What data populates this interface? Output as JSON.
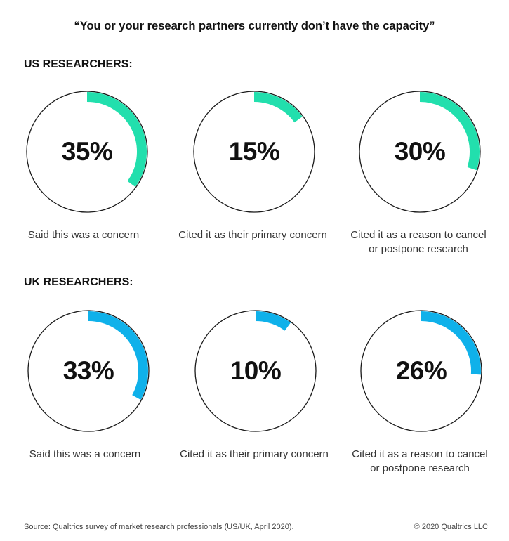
{
  "title": "“You or your research partners currently don’t have the capacity”",
  "sections": [
    {
      "heading": "US RESEARCHERS:"
    },
    {
      "heading": "UK RESEARCHERS:"
    }
  ],
  "colors": {
    "us": "#22dfad",
    "uk": "#0fb1ea",
    "ring": "#1a1a1a"
  },
  "chart_data": [
    {
      "type": "pie",
      "group": "US RESEARCHERS:",
      "categories": [
        "Said this was a concern",
        "Cited it as their primary concern",
        "Cited it as a reason to cancel or postpone research"
      ],
      "values": [
        35,
        15,
        30
      ],
      "labels": [
        "35%",
        "15%",
        "30%"
      ],
      "ylim": [
        0,
        100
      ]
    },
    {
      "type": "pie",
      "group": "UK RESEARCHERS:",
      "categories": [
        "Said this was a concern",
        "Cited it as their primary concern",
        "Cited it as a reason to cancel or postpone research"
      ],
      "values": [
        33,
        10,
        26
      ],
      "labels": [
        "33%",
        "10%",
        "26%"
      ],
      "ylim": [
        0,
        100
      ]
    }
  ],
  "footer": {
    "source": "Source: Qualtrics survey of market research professionals (US/UK, April 2020).",
    "copyright": "© 2020 Qualtrics LLC"
  }
}
